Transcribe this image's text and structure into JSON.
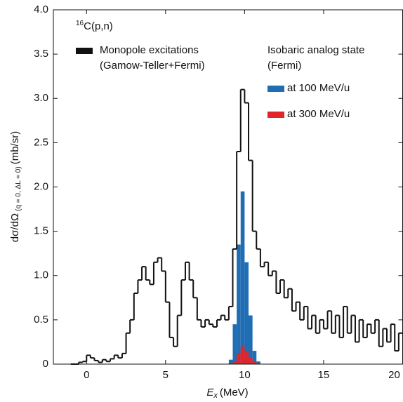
{
  "chart_data": {
    "type": "histogram",
    "reaction_mass": "16",
    "reaction": "C(p,n)",
    "y_label": "dσ/dΩ",
    "y_label_sub": "(q = 0, ΔL = 0)",
    "y_label_unit": "(mb/sr)",
    "x_label": "E",
    "x_label_sub": "x",
    "x_label_unit": "(MeV)",
    "legend_group": "Isobaric analog state",
    "legend_group_note": "(Fermi)",
    "xlim": [
      -2.1,
      20
    ],
    "ylim": [
      0,
      4.0
    ],
    "xticks": [
      0,
      5,
      10,
      15,
      20
    ],
    "yticks": [
      0,
      0.5,
      {
        "value": 1,
        "label": "1.0"
      },
      1.5,
      {
        "value": 2,
        "label": "2.0"
      },
      2.5,
      {
        "value": 3,
        "label": "3.0"
      },
      3.5,
      {
        "value": 4,
        "label": "4.0"
      }
    ],
    "series": [
      {
        "name": "Monopole excitations",
        "note": "(Gamow-Teller+Fermi)",
        "color": "#111111",
        "style": "step",
        "bins": [
          -1,
          -0.75,
          -0.5,
          -0.25,
          0,
          0.25,
          0.5,
          0.75,
          1,
          1.25,
          1.5,
          1.75,
          2,
          2.25,
          2.5,
          2.75,
          3,
          3.25,
          3.5,
          3.75,
          4,
          4.25,
          4.5,
          4.75,
          5,
          5.25,
          5.5,
          5.75,
          6,
          6.25,
          6.5,
          6.75,
          7,
          7.25,
          7.5,
          7.75,
          8,
          8.25,
          8.5,
          8.75,
          9,
          9.25,
          9.5,
          9.75,
          10,
          10.25,
          10.5,
          10.75,
          11,
          11.25,
          11.5,
          11.75,
          12,
          12.25,
          12.5,
          12.75,
          13,
          13.25,
          13.5,
          13.75,
          14,
          14.25,
          14.5,
          14.75,
          15,
          15.25,
          15.5,
          15.75,
          16,
          16.25,
          16.5,
          16.75,
          17,
          17.25,
          17.5,
          17.75,
          18,
          18.25,
          18.5,
          18.75,
          19,
          19.25,
          19.5,
          19.75,
          20
        ],
        "values": [
          0,
          0,
          0.02,
          0.03,
          0.1,
          0.07,
          0.04,
          0.02,
          0.05,
          0.03,
          0.06,
          0.1,
          0.07,
          0.12,
          0.35,
          0.5,
          0.8,
          0.95,
          1.1,
          0.95,
          0.9,
          1.15,
          1.2,
          1.05,
          0.7,
          0.3,
          0.2,
          0.55,
          0.95,
          1.15,
          0.95,
          0.75,
          0.5,
          0.42,
          0.5,
          0.45,
          0.42,
          0.5,
          0.55,
          0.5,
          0.65,
          1.3,
          2.4,
          3.1,
          2.95,
          2.3,
          1.5,
          1.3,
          1.1,
          1.15,
          1.0,
          1.05,
          0.8,
          0.95,
          0.75,
          0.85,
          0.6,
          0.7,
          0.5,
          0.65,
          0.4,
          0.55,
          0.35,
          0.5,
          0.4,
          0.6,
          0.35,
          0.55,
          0.3,
          0.65,
          0.35,
          0.55,
          0.25,
          0.5,
          0.3,
          0.45,
          0.35,
          0.5,
          0.2,
          0.4,
          0.25,
          0.45,
          0.15,
          0.35
        ]
      },
      {
        "name": "at 100 MeV/u",
        "color": "#1f6db3",
        "style": "fill",
        "bins": [
          9,
          9.25,
          9.5,
          9.75,
          10,
          10.25,
          10.5,
          10.75,
          11
        ],
        "values": [
          0.05,
          0.45,
          1.35,
          1.95,
          1.15,
          0.55,
          0.15,
          0.03
        ]
      },
      {
        "name": "at 300 MeV/u",
        "color": "#e0252b",
        "style": "fill",
        "bins": [
          9,
          9.25,
          9.5,
          9.75,
          10,
          10.25,
          10.5,
          10.75,
          11
        ],
        "values": [
          0.01,
          0.03,
          0.12,
          0.2,
          0.15,
          0.07,
          0.03,
          0.01
        ]
      }
    ]
  }
}
